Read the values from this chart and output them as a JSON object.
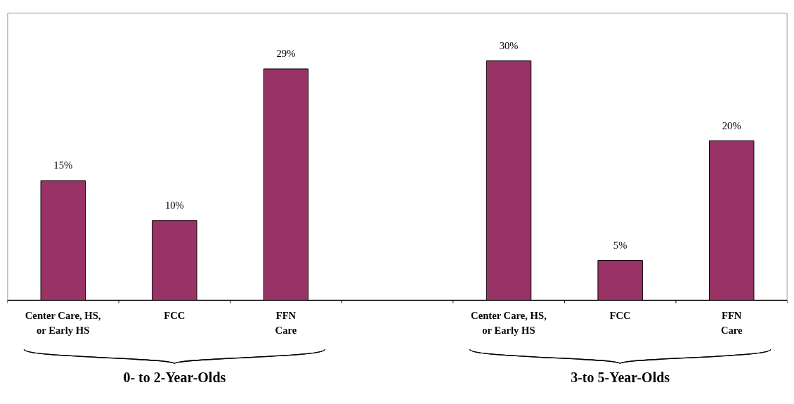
{
  "chart_data": {
    "type": "bar",
    "categories": [
      "Center Care, HS,\nor Early HS",
      "FCC",
      "FFN\nCare",
      null,
      "Center Care, HS,\nor Early HS",
      "FCC",
      "FFN\nCare"
    ],
    "values": [
      15,
      10,
      29,
      null,
      30,
      5,
      20
    ],
    "value_labels": [
      "15%",
      "10%",
      "29%",
      null,
      "30%",
      "5%",
      "20%"
    ],
    "color": "#993366",
    "grid": false,
    "annotations": [
      "0- to 2-Year-Olds",
      "3-to 5-Year-Olds"
    ]
  }
}
